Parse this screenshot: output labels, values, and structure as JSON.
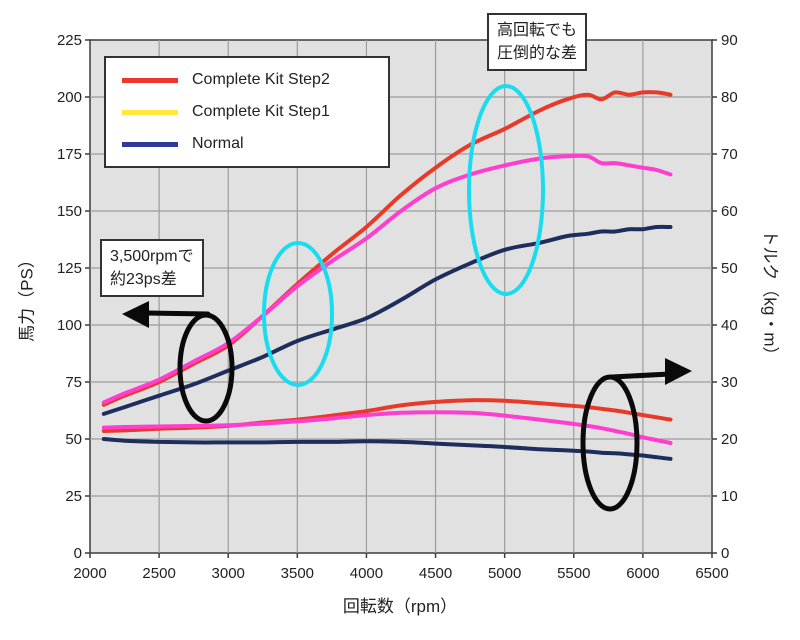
{
  "chart_data": {
    "type": "line",
    "title": "",
    "xlabel": "回転数（rpm）",
    "ylabel_left": "馬力（PS）",
    "ylabel_right": "トルク（kg・m）",
    "x_axis": {
      "min": 2000,
      "max": 6500,
      "ticks": [
        2000,
        2500,
        3000,
        3500,
        4000,
        4500,
        5000,
        5500,
        6000,
        6500
      ]
    },
    "y_left_axis": {
      "min": 0,
      "max": 225,
      "ticks": [
        0,
        25,
        50,
        75,
        100,
        125,
        150,
        175,
        200,
        225
      ]
    },
    "y_right_axis": {
      "min": 0,
      "max": 90,
      "ticks": [
        0,
        10,
        20,
        30,
        40,
        50,
        60,
        70,
        80,
        90
      ]
    },
    "grid": true,
    "rpm": [
      2100,
      2250,
      2500,
      2750,
      3000,
      3250,
      3500,
      3750,
      4000,
      4250,
      4500,
      4750,
      5000,
      5250,
      5450,
      5600,
      5700,
      5800,
      5900,
      6000,
      6100,
      6200
    ],
    "series": [
      {
        "name": "Complete Kit Step2 power (PS)",
        "axis": "left",
        "color": "#e8392b",
        "values": [
          65,
          69,
          75,
          83,
          91,
          104,
          118,
          131,
          143,
          157,
          169,
          179,
          186,
          194,
          199,
          201,
          199,
          202,
          201,
          202,
          202,
          201
        ]
      },
      {
        "name": "Complete Kit Step1 power (PS)",
        "axis": "left",
        "color": "#ff3ecf",
        "values": [
          66,
          70,
          76,
          84,
          92,
          104,
          117,
          128,
          138,
          150,
          160,
          166,
          170,
          173,
          174,
          174,
          171,
          171,
          170,
          169,
          168,
          166
        ]
      },
      {
        "name": "Normal power (PS)",
        "axis": "left",
        "color": "#1f2d5c",
        "values": [
          61,
          64,
          69,
          74,
          80,
          86,
          93,
          98,
          103,
          111,
          120,
          127,
          133,
          136,
          139,
          140,
          141,
          141,
          142,
          142,
          143,
          143
        ]
      },
      {
        "name": "Complete Kit Step2 torque (kg・m)",
        "axis": "right",
        "color": "#e8392b",
        "values": [
          21.4,
          21.5,
          21.8,
          22.0,
          22.3,
          22.9,
          23.4,
          24.1,
          24.9,
          25.9,
          26.5,
          26.8,
          26.7,
          26.3,
          25.9,
          25.6,
          25.3,
          25.0,
          24.6,
          24.2,
          23.8,
          23.4
        ]
      },
      {
        "name": "Complete Kit Step1 torque (kg・m)",
        "axis": "right",
        "color": "#ff3ecf",
        "values": [
          22.0,
          22.1,
          22.2,
          22.3,
          22.4,
          22.7,
          23.1,
          23.6,
          24.2,
          24.6,
          24.7,
          24.6,
          24.1,
          23.4,
          22.8,
          22.3,
          21.9,
          21.4,
          20.9,
          20.3,
          19.8,
          19.3
        ]
      },
      {
        "name": "Normal torque (kg・m)",
        "axis": "right",
        "color": "#1f2d5c",
        "values": [
          20.0,
          19.7,
          19.5,
          19.4,
          19.4,
          19.4,
          19.5,
          19.5,
          19.6,
          19.5,
          19.2,
          18.9,
          18.6,
          18.2,
          18.0,
          17.8,
          17.6,
          17.5,
          17.3,
          17.1,
          16.8,
          16.5
        ]
      }
    ],
    "legend": {
      "position": "top-left",
      "entries": [
        {
          "label": "Complete Kit Step2",
          "color": "#e8392b"
        },
        {
          "label": "Complete Kit Step1",
          "color": "#ffe93f"
        },
        {
          "label": "Normal",
          "color": "#2f3a96"
        }
      ]
    },
    "annotations": [
      {
        "line1": "3,500rpmで",
        "line2": "約23ps差"
      },
      {
        "line1": "高回転でも",
        "line2": "圧倒的な差"
      }
    ],
    "highlights": [
      {
        "shape": "ellipse",
        "color": "#19dcef",
        "cx": 298,
        "cy": 314,
        "rx": 34,
        "ry": 71
      },
      {
        "shape": "ellipse",
        "color": "#19dcef",
        "cx": 506,
        "cy": 190,
        "rx": 37,
        "ry": 104
      }
    ],
    "indicator_ellipses": [
      {
        "color": "#0a0a0a",
        "cx": 206,
        "cy": 368,
        "rx": 26,
        "ry": 53
      },
      {
        "color": "#0a0a0a",
        "cx": 610,
        "cy": 443,
        "rx": 27,
        "ry": 66
      }
    ],
    "indicator_arrows": [
      {
        "x1": 208,
        "y1": 314,
        "x2": 146,
        "y2": 313,
        "tipx": 122,
        "tipy": 314,
        "dir": "left"
      },
      {
        "x1": 612,
        "y1": 377,
        "x2": 670,
        "y2": 374,
        "tipx": 692,
        "tipy": 371,
        "dir": "right"
      }
    ],
    "colors": {
      "plot_bg": "#e1e1e1",
      "grid": "#9c9c9c",
      "axis": "#3c3c3c",
      "text": "#222222"
    }
  }
}
